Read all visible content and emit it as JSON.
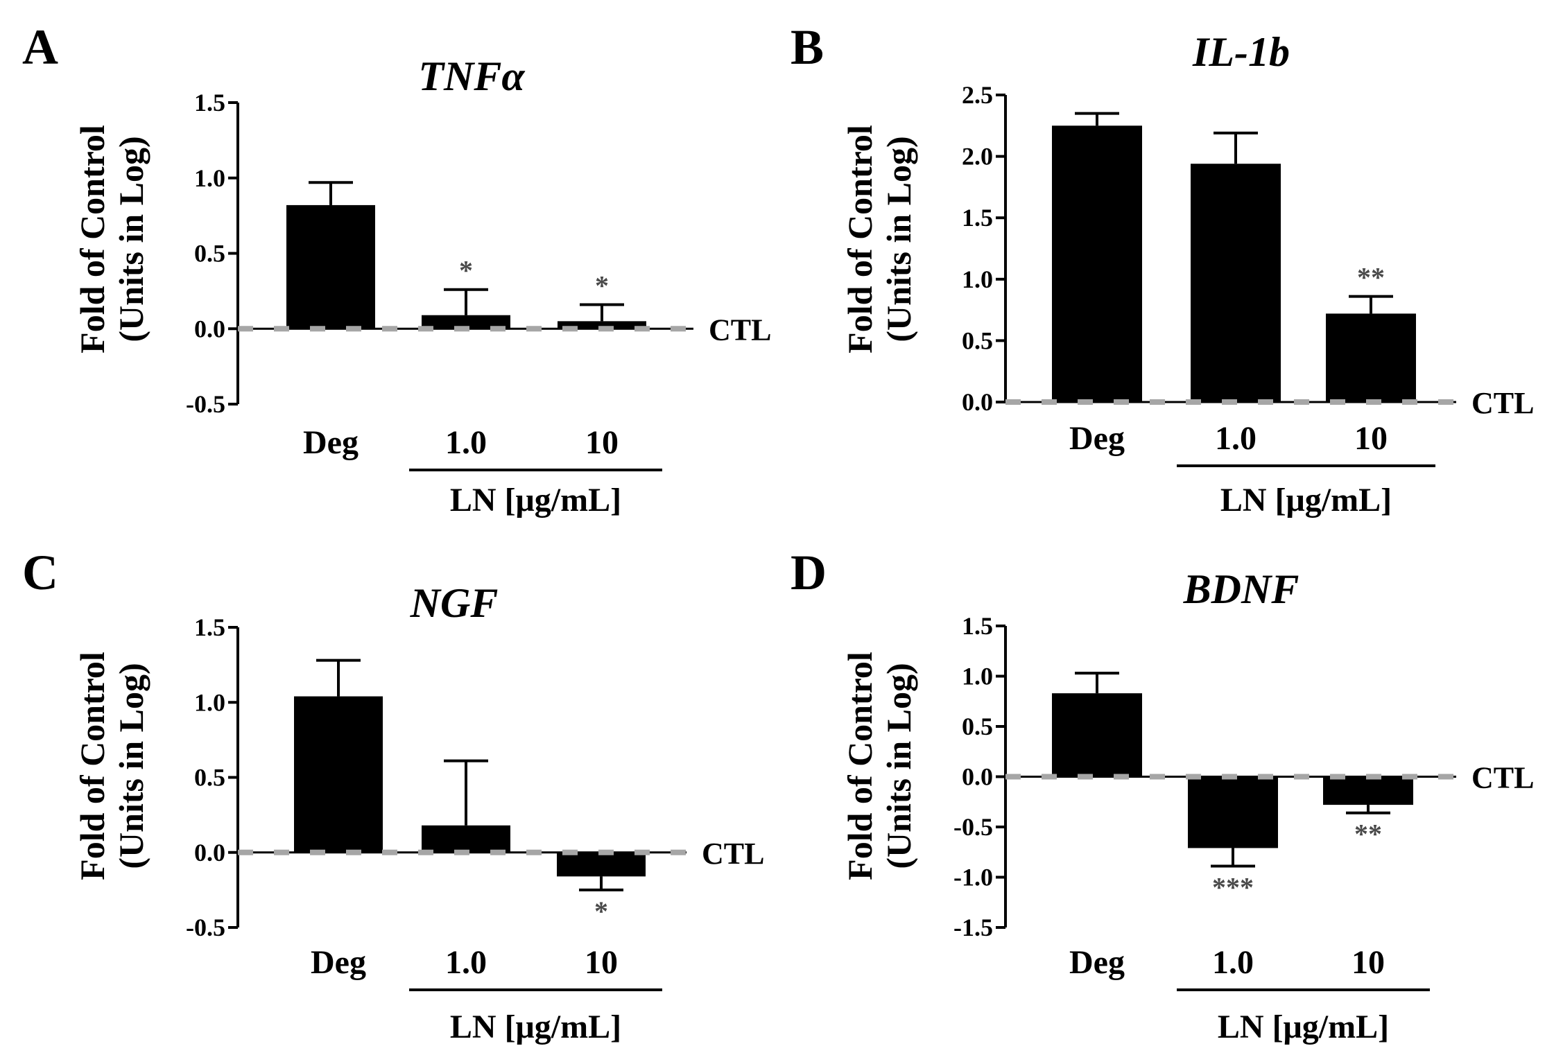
{
  "chart_data": [
    {
      "type": "bar",
      "panel": "A",
      "title": "TNFα",
      "ylabel": [
        "Fold of Control",
        "(Units in Log)"
      ],
      "categories": [
        "Deg",
        "1.0",
        "10"
      ],
      "values": [
        0.82,
        0.09,
        0.05
      ],
      "errors": [
        0.15,
        0.17,
        0.11
      ],
      "significance": [
        "",
        "*",
        "*"
      ],
      "ylim": [
        -0.5,
        1.5
      ],
      "yticks": [
        "1.5",
        "1.0",
        "0.5",
        "0.0",
        "-0.5"
      ],
      "ytick_values": [
        1.5,
        1.0,
        0.5,
        0.0,
        -0.5
      ],
      "group_label": "LN [μg/mL]",
      "reference_label": "CTL",
      "reference_value": 0
    },
    {
      "type": "bar",
      "panel": "B",
      "title": "IL-1b",
      "ylabel": [
        "Fold of Control",
        "(Units in Log)"
      ],
      "categories": [
        "Deg",
        "1.0",
        "10"
      ],
      "values": [
        2.25,
        1.94,
        0.72
      ],
      "errors": [
        0.1,
        0.25,
        0.14
      ],
      "significance": [
        "",
        "",
        "**"
      ],
      "ylim": [
        0.0,
        2.5
      ],
      "yticks": [
        "2.5",
        "2.0",
        "1.5",
        "1.0",
        "0.5",
        "0.0"
      ],
      "ytick_values": [
        2.5,
        2.0,
        1.5,
        1.0,
        0.5,
        0.0
      ],
      "group_label": "LN [μg/mL]",
      "reference_label": "CTL",
      "reference_value": 0
    },
    {
      "type": "bar",
      "panel": "C",
      "title": "NGF",
      "ylabel": [
        "Fold of Control",
        "(Units in Log)"
      ],
      "categories": [
        "Deg",
        "1.0",
        "10"
      ],
      "values": [
        1.04,
        0.18,
        -0.16
      ],
      "errors": [
        0.24,
        0.43,
        0.09
      ],
      "significance": [
        "",
        "",
        "*"
      ],
      "ylim": [
        -0.5,
        1.5
      ],
      "yticks": [
        "1.5",
        "1.0",
        "0.5",
        "0.0",
        "-0.5"
      ],
      "ytick_values": [
        1.5,
        1.0,
        0.5,
        0.0,
        -0.5
      ],
      "group_label": "LN [μg/mL]",
      "reference_label": "CTL",
      "reference_value": 0
    },
    {
      "type": "bar",
      "panel": "D",
      "title": "BDNF",
      "ylabel": [
        "Fold of Control",
        "(Units in Log)"
      ],
      "categories": [
        "Deg",
        "1.0",
        "10"
      ],
      "values": [
        0.83,
        -0.71,
        -0.28
      ],
      "errors": [
        0.2,
        0.18,
        0.08
      ],
      "significance": [
        "",
        "***",
        "**"
      ],
      "ylim": [
        -1.5,
        1.5
      ],
      "yticks": [
        "1.5",
        "1.0",
        "0.5",
        "0.0",
        "-0.5",
        "-1.0",
        "-1.5"
      ],
      "ytick_values": [
        1.5,
        1.0,
        0.5,
        0.0,
        -0.5,
        -1.0,
        -1.5
      ],
      "group_label": "LN [μg/mL]",
      "reference_label": "CTL",
      "reference_value": 0
    }
  ]
}
